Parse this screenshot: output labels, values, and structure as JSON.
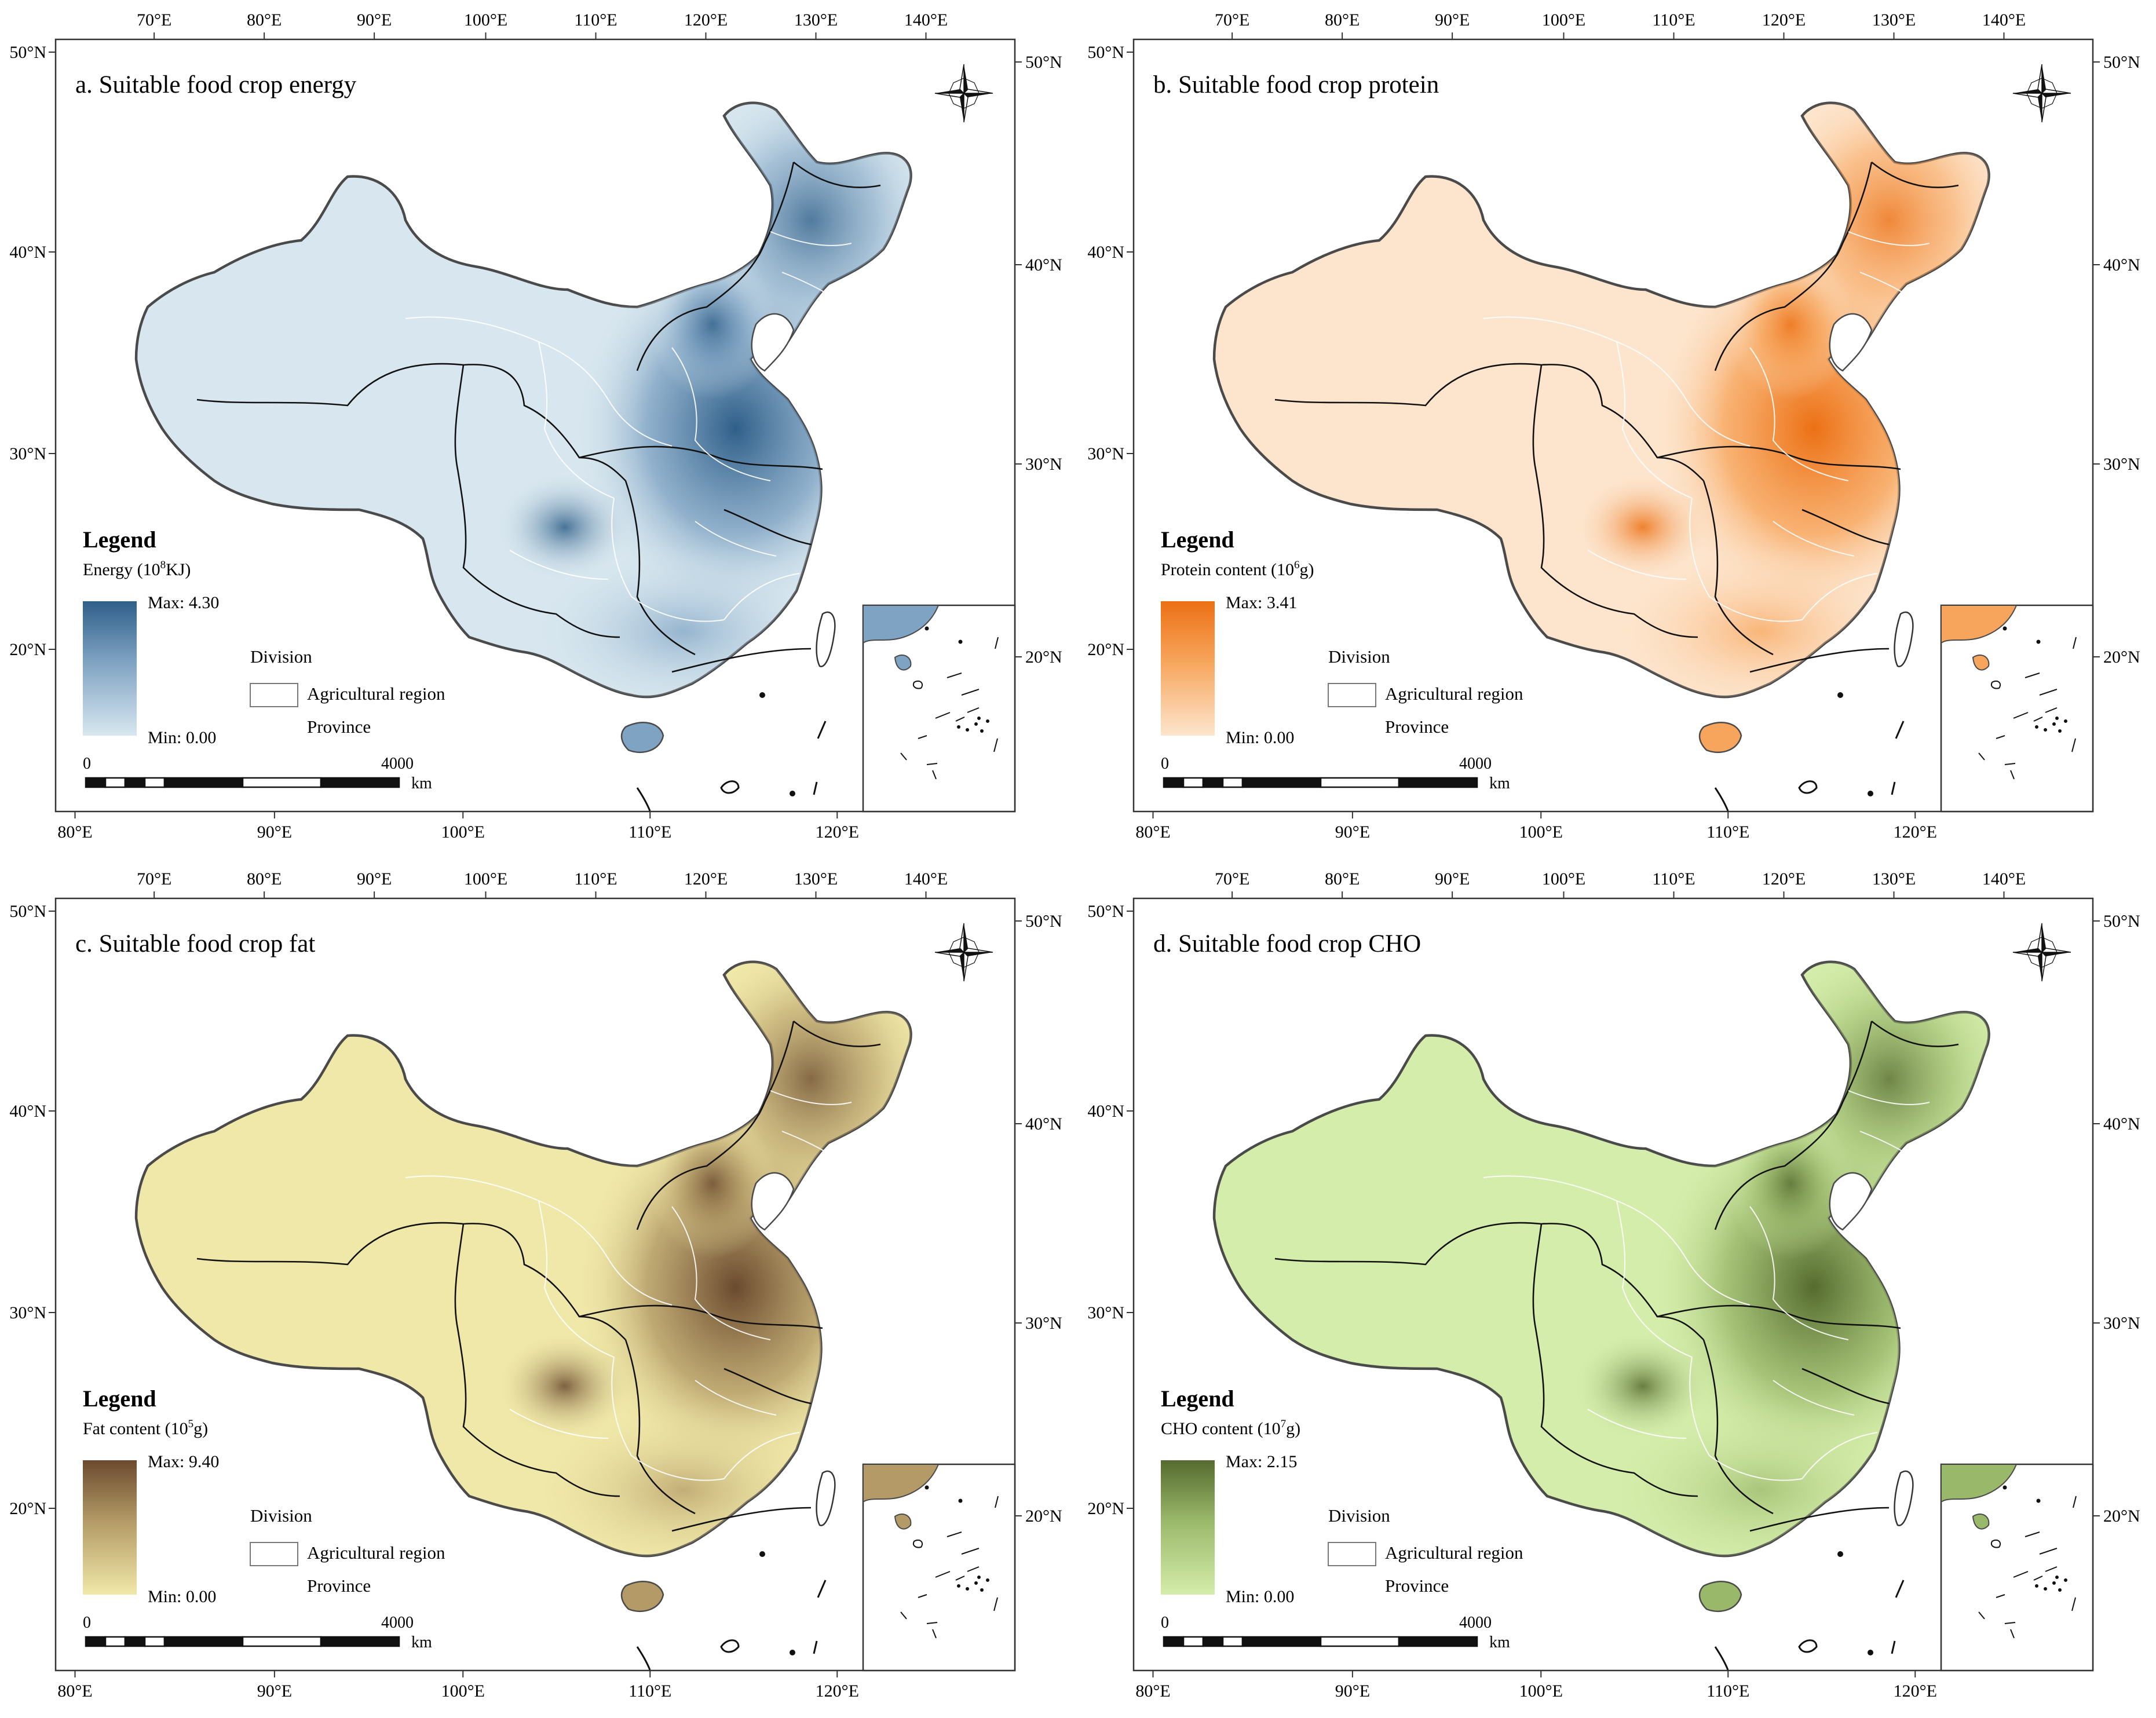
{
  "axes": {
    "top": [
      "70°E",
      "80°E",
      "90°E",
      "100°E",
      "110°E",
      "120°E",
      "130°E",
      "140°E"
    ],
    "bottom": [
      "80°E",
      "90°E",
      "100°E",
      "110°E",
      "120°E"
    ],
    "left": [
      "50°N",
      "40°N",
      "30°N",
      "20°N"
    ],
    "right": [
      "50°N",
      "40°N",
      "30°N",
      "20°N"
    ]
  },
  "legend": {
    "title": "Legend",
    "division_title": "Division",
    "agricultural_region": "Agricultural region",
    "province": "Province",
    "min_label": "Min: 0.00"
  },
  "scalebar": {
    "zero": "0",
    "max": "4000",
    "unit": "km"
  },
  "panels": [
    {
      "id": "a",
      "title": "a. Suitable food crop energy",
      "quantity": "Energy (10",
      "exponent": "8",
      "unit": "KJ)",
      "max_label": "Max: 4.30",
      "colors": {
        "low": "#d8e7ef",
        "mid": "#7fa3c3",
        "high": "#2f5f89"
      }
    },
    {
      "id": "b",
      "title": "b. Suitable food crop protein",
      "quantity": "Protein content (10",
      "exponent": "6",
      "unit": "g)",
      "max_label": "Max: 3.41",
      "colors": {
        "low": "#fde5cd",
        "mid": "#f7a55c",
        "high": "#ec7014"
      }
    },
    {
      "id": "c",
      "title": "c. Suitable food crop fat",
      "quantity": "Fat content (10",
      "exponent": "5",
      "unit": "g)",
      "max_label": "Max: 9.40",
      "colors": {
        "low": "#f0e8a8",
        "mid": "#b39a66",
        "high": "#6b4a2e"
      }
    },
    {
      "id": "d",
      "title": "d. Suitable food crop CHO",
      "quantity": "CHO content (10",
      "exponent": "7",
      "unit": "g)",
      "max_label": "Max: 2.15",
      "colors": {
        "low": "#d4edaa",
        "mid": "#9ab86a",
        "high": "#556b2f"
      }
    }
  ]
}
